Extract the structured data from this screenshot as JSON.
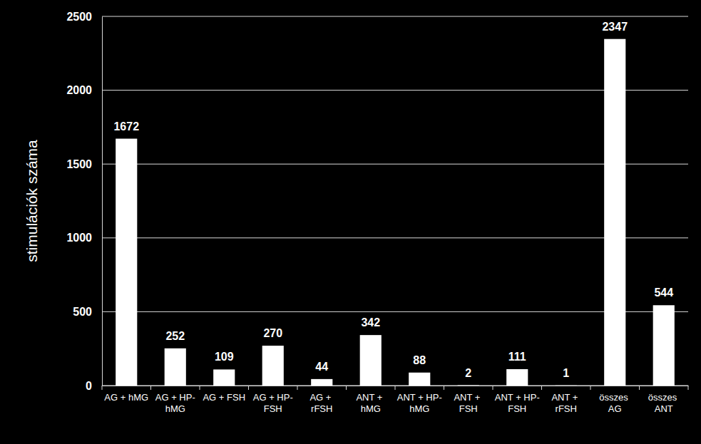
{
  "chart_data": {
    "type": "bar",
    "y_label": "stimulációk száma",
    "categories": [
      "AG + hMG",
      "AG + HP-hMG",
      "AG + FSH",
      "AG + HP-FSH",
      "AG + rFSH",
      "ANT + hMG",
      "ANT + HP-hMG",
      "ANT + FSH",
      "ANT + HP-FSH",
      "ANT + rFSH",
      "összes AG",
      "összes ANT"
    ],
    "values": [
      1672,
      252,
      109,
      270,
      44,
      342,
      88,
      2,
      111,
      1,
      2347,
      544
    ],
    "color": "#ffffff",
    "ylim": [
      0,
      2500
    ],
    "yticks": [
      0,
      500,
      1000,
      1500,
      2000,
      2500
    ],
    "grid": true,
    "data_labels": true
  }
}
